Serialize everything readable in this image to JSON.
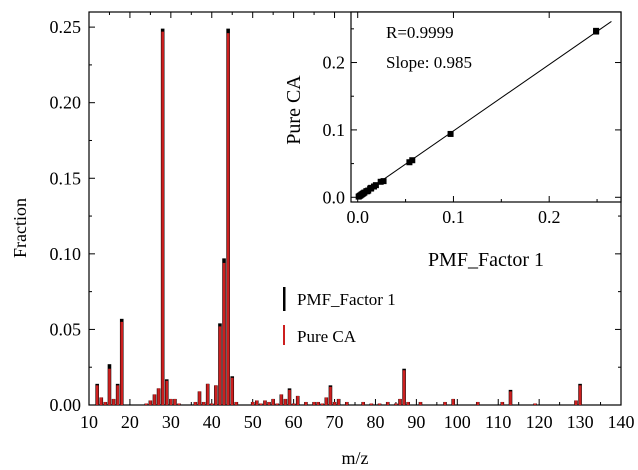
{
  "chart_data": [
    {
      "type": "bar",
      "xlabel": "m/z",
      "ylabel": "Fraction",
      "xlim": [
        10,
        140
      ],
      "ylim": [
        0,
        0.26
      ],
      "x_ticks": [
        10,
        20,
        30,
        40,
        50,
        60,
        70,
        80,
        90,
        100,
        110,
        120,
        130,
        140
      ],
      "y_ticks": [
        0.0,
        0.05,
        0.1,
        0.15,
        0.2,
        0.25
      ],
      "y_tick_labels": [
        "0.00",
        "0.05",
        "0.10",
        "0.15",
        "0.20",
        "0.25"
      ],
      "legend": {
        "position": "center-right",
        "entries": [
          "PMF_Factor 1",
          "Pure CA"
        ]
      },
      "series": [
        {
          "name": "PMF_Factor 1",
          "color": "#000000"
        },
        {
          "name": "Pure CA",
          "color": "#cc1f1f"
        }
      ],
      "x": [
        12,
        13,
        14,
        15,
        16,
        17,
        18,
        24,
        25,
        26,
        27,
        28,
        29,
        30,
        31,
        32,
        36,
        37,
        38,
        39,
        40,
        41,
        42,
        43,
        44,
        45,
        46,
        50,
        51,
        52,
        53,
        54,
        55,
        56,
        57,
        58,
        59,
        60,
        61,
        63,
        65,
        66,
        67,
        68,
        69,
        70,
        71,
        73,
        77,
        79,
        81,
        83,
        85,
        86,
        87,
        88,
        91,
        97,
        99,
        105,
        111,
        113,
        119,
        129,
        130
      ],
      "pmf_factor_1": [
        0.014,
        0.005,
        0.002,
        0.027,
        0.004,
        0.014,
        0.057,
        0.001,
        0.003,
        0.007,
        0.011,
        0.249,
        0.017,
        0.004,
        0.004,
        0.001,
        0.002,
        0.009,
        0.002,
        0.014,
        0.001,
        0.013,
        0.054,
        0.097,
        0.249,
        0.019,
        0.002,
        0.002,
        0.003,
        0.001,
        0.003,
        0.002,
        0.004,
        0.001,
        0.007,
        0.004,
        0.011,
        0.001,
        0.006,
        0.002,
        0.002,
        0.002,
        0.001,
        0.005,
        0.013,
        0.002,
        0.004,
        0.002,
        0.002,
        0.001,
        0.001,
        0.002,
        0.001,
        0.004,
        0.024,
        0.002,
        0.002,
        0.002,
        0.004,
        0.002,
        0.002,
        0.01,
        0.001,
        0.003,
        0.014
      ],
      "pure_ca": [
        0.013,
        0.005,
        0.002,
        0.024,
        0.004,
        0.013,
        0.055,
        0.001,
        0.003,
        0.007,
        0.011,
        0.247,
        0.016,
        0.004,
        0.004,
        0.001,
        0.002,
        0.009,
        0.002,
        0.014,
        0.001,
        0.013,
        0.052,
        0.094,
        0.246,
        0.018,
        0.002,
        0.002,
        0.003,
        0.001,
        0.003,
        0.002,
        0.004,
        0.001,
        0.007,
        0.004,
        0.01,
        0.001,
        0.006,
        0.002,
        0.002,
        0.002,
        0.001,
        0.005,
        0.012,
        0.002,
        0.004,
        0.002,
        0.002,
        0.001,
        0.001,
        0.002,
        0.001,
        0.004,
        0.023,
        0.002,
        0.002,
        0.002,
        0.004,
        0.002,
        0.002,
        0.009,
        0.001,
        0.003,
        0.013
      ]
    },
    {
      "type": "scatter",
      "xlabel": "PMF_Factor 1",
      "ylabel": "Pure CA",
      "xlim": [
        -0.007,
        0.275
      ],
      "ylim": [
        -0.007,
        0.275
      ],
      "x_ticks": [
        0.0,
        0.1,
        0.2
      ],
      "y_ticks": [
        0.0,
        0.1,
        0.2
      ],
      "tick_labels": [
        "0.0",
        "0.1",
        "0.2"
      ],
      "annotations": [
        "R=0.9999",
        "Slope: 0.985"
      ],
      "fit_line": {
        "slope": 0.985,
        "intercept": 0.0
      },
      "points": [
        [
          0.001,
          0.001
        ],
        [
          0.002,
          0.002
        ],
        [
          0.003,
          0.003
        ],
        [
          0.004,
          0.004
        ],
        [
          0.005,
          0.005
        ],
        [
          0.006,
          0.006
        ],
        [
          0.007,
          0.007
        ],
        [
          0.009,
          0.009
        ],
        [
          0.01,
          0.009
        ],
        [
          0.011,
          0.01
        ],
        [
          0.013,
          0.013
        ],
        [
          0.014,
          0.013
        ],
        [
          0.014,
          0.014
        ],
        [
          0.017,
          0.016
        ],
        [
          0.019,
          0.018
        ],
        [
          0.024,
          0.023
        ],
        [
          0.027,
          0.024
        ],
        [
          0.054,
          0.052
        ],
        [
          0.057,
          0.055
        ],
        [
          0.097,
          0.094
        ],
        [
          0.249,
          0.247
        ],
        [
          0.249,
          0.246
        ]
      ]
    }
  ]
}
